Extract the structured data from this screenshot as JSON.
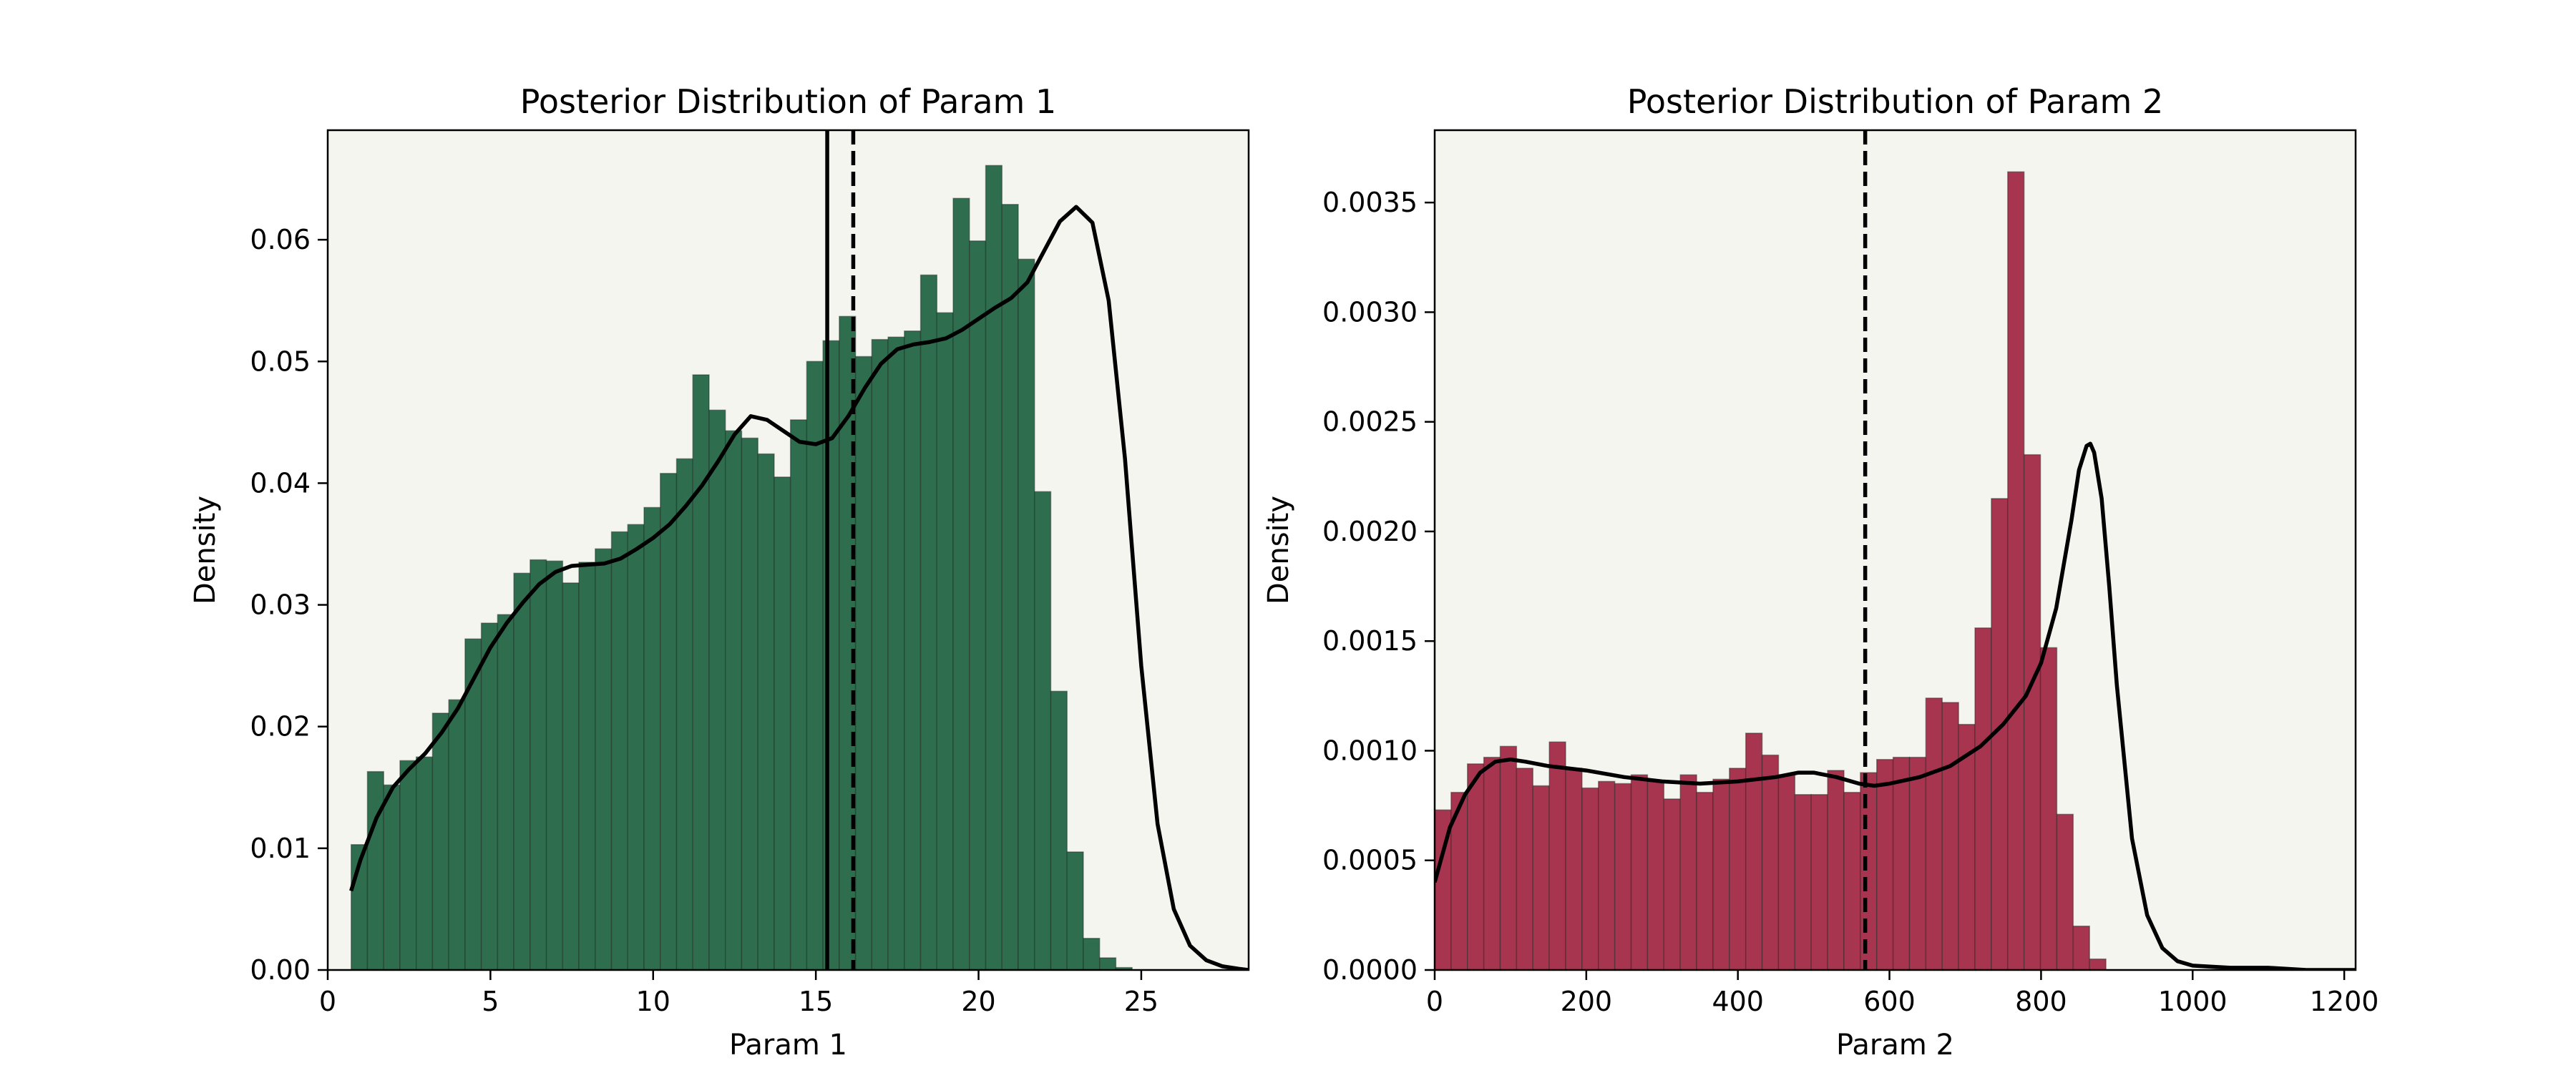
{
  "chart_data": [
    {
      "type": "bar",
      "title": "Posterior Distribution of Param 1",
      "xlabel": "Param 1",
      "ylabel": "Density",
      "xlim": [
        0,
        28.3
      ],
      "ylim": [
        0,
        0.069
      ],
      "xticks": [
        0,
        5,
        10,
        15,
        20,
        25
      ],
      "yticks": [
        0.0,
        0.01,
        0.02,
        0.03,
        0.04,
        0.05,
        0.06
      ],
      "ytick_decimals": 2,
      "grid": false,
      "background": "#f5f5f0",
      "bar_color": "#2e6e4e",
      "line_color": "#000000",
      "bin_start": 0.72,
      "bin_width": 0.5,
      "values": [
        0.0103,
        0.0163,
        0.0152,
        0.0172,
        0.0175,
        0.0211,
        0.0222,
        0.0272,
        0.0285,
        0.0292,
        0.0326,
        0.0337,
        0.0336,
        0.0318,
        0.0335,
        0.0346,
        0.036,
        0.0366,
        0.038,
        0.0408,
        0.042,
        0.0489,
        0.046,
        0.0443,
        0.0437,
        0.0424,
        0.0405,
        0.0452,
        0.05,
        0.0517,
        0.0537,
        0.0504,
        0.0518,
        0.052,
        0.0525,
        0.0571,
        0.054,
        0.0634,
        0.0599,
        0.0661,
        0.0629,
        0.0584,
        0.0393,
        0.0229,
        0.0097,
        0.0026,
        0.001,
        0.0002
      ],
      "kde": {
        "x": [
          0.72,
          1.0,
          1.5,
          2.0,
          2.5,
          3.0,
          3.5,
          4.0,
          4.5,
          5.0,
          5.5,
          6.0,
          6.5,
          7.0,
          7.5,
          8.0,
          8.5,
          9.0,
          9.5,
          10.0,
          10.5,
          11.0,
          11.5,
          12.0,
          12.5,
          13.0,
          13.5,
          14.0,
          14.5,
          15.0,
          15.5,
          16.0,
          16.5,
          17.0,
          17.5,
          18.0,
          18.5,
          19.0,
          19.5,
          20.0,
          20.5,
          21.0,
          21.5,
          22.0,
          22.5,
          23.0,
          23.5,
          24.0,
          24.5,
          25.0,
          25.5,
          26.0,
          26.5,
          27.0,
          27.5,
          28.0,
          28.3
        ],
        "y": [
          0.0065,
          0.009,
          0.0125,
          0.015,
          0.0165,
          0.0178,
          0.0195,
          0.0215,
          0.024,
          0.0265,
          0.0285,
          0.0302,
          0.0317,
          0.0327,
          0.0332,
          0.0333,
          0.0334,
          0.0338,
          0.0346,
          0.0355,
          0.0366,
          0.0381,
          0.0398,
          0.0418,
          0.044,
          0.0455,
          0.0452,
          0.0443,
          0.0434,
          0.0432,
          0.0437,
          0.0455,
          0.0478,
          0.0498,
          0.051,
          0.0514,
          0.0516,
          0.0519,
          0.0526,
          0.0535,
          0.0544,
          0.0552,
          0.0565,
          0.059,
          0.0615,
          0.0627,
          0.0614,
          0.055,
          0.042,
          0.025,
          0.012,
          0.005,
          0.002,
          0.0008,
          0.0003,
          0.0001,
          0.0
        ]
      },
      "vlines": [
        {
          "x": 15.35,
          "style": "solid"
        },
        {
          "x": 16.15,
          "style": "dashed"
        }
      ]
    },
    {
      "type": "bar",
      "title": "Posterior Distribution of Param 2",
      "xlabel": "Param 2",
      "ylabel": "Density",
      "xlim": [
        0,
        1215
      ],
      "ylim": [
        0,
        0.00383
      ],
      "xticks": [
        0,
        200,
        400,
        600,
        800,
        1000,
        1200
      ],
      "yticks": [
        0.0,
        0.0005,
        0.001,
        0.0015,
        0.002,
        0.0025,
        0.003,
        0.0035
      ],
      "ytick_decimals": 4,
      "grid": false,
      "background": "#f5f5f0",
      "bar_color": "#a8354f",
      "line_color": "#000000",
      "bin_start": 0,
      "bin_width": 21.6,
      "values": [
        0.00073,
        0.00081,
        0.00094,
        0.00097,
        0.00102,
        0.00092,
        0.00084,
        0.00104,
        0.00092,
        0.00083,
        0.00086,
        0.00085,
        0.00089,
        0.00086,
        0.00078,
        0.00089,
        0.00081,
        0.00087,
        0.00092,
        0.00108,
        0.00098,
        0.00089,
        0.0008,
        0.0008,
        0.00091,
        0.00081,
        0.0009,
        0.00096,
        0.00097,
        0.00097,
        0.00124,
        0.00122,
        0.00112,
        0.00156,
        0.00215,
        0.00364,
        0.00235,
        0.00147,
        0.00071,
        0.0002,
        5e-05
      ],
      "kde": {
        "x": [
          0,
          20,
          40,
          60,
          80,
          100,
          120,
          150,
          200,
          250,
          300,
          350,
          400,
          450,
          480,
          500,
          530,
          560,
          580,
          600,
          640,
          680,
          720,
          750,
          780,
          800,
          820,
          840,
          850,
          860,
          865,
          870,
          880,
          890,
          900,
          920,
          940,
          960,
          980,
          1000,
          1050,
          1100,
          1150,
          1215
        ],
        "y": [
          0.0004,
          0.00065,
          0.0008,
          0.0009,
          0.00095,
          0.00096,
          0.00095,
          0.00093,
          0.00091,
          0.00088,
          0.00086,
          0.00085,
          0.00086,
          0.00088,
          0.0009,
          0.0009,
          0.00088,
          0.00085,
          0.00084,
          0.00085,
          0.00088,
          0.00093,
          0.00102,
          0.00112,
          0.00125,
          0.0014,
          0.00165,
          0.00205,
          0.00228,
          0.00239,
          0.0024,
          0.00236,
          0.00215,
          0.00175,
          0.0013,
          0.0006,
          0.00025,
          0.0001,
          4e-05,
          2e-05,
          1e-05,
          1e-05,
          0.0,
          0.0
        ]
      },
      "vlines": [
        {
          "x": 568,
          "style": "dashed"
        }
      ]
    }
  ]
}
